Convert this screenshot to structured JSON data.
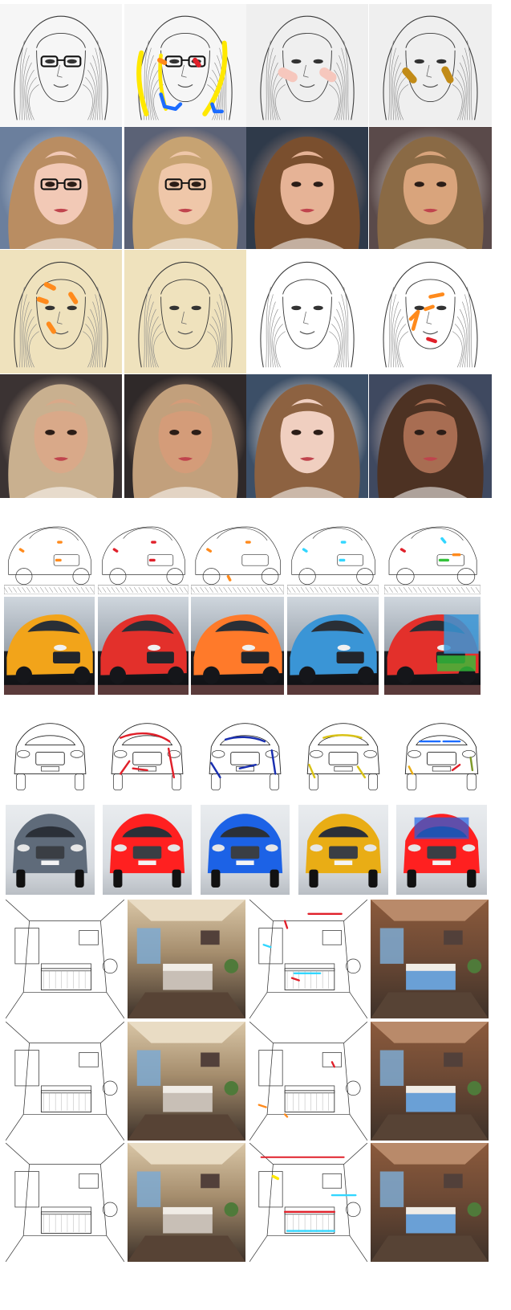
{
  "figure": {
    "sections": [
      {
        "name": "faces",
        "rows": 4
      },
      {
        "name": "cars-sedan",
        "rows": 2
      },
      {
        "name": "cars-benz",
        "rows": 2
      },
      {
        "name": "interiors",
        "rows": 3
      }
    ],
    "palette": {
      "sketch_ink": "#3a3a3a",
      "paper": "#f4f4f4",
      "sepia_paper": "#efe2bd",
      "stroke_yellow": "#ffe800",
      "stroke_blue": "#1c6cff",
      "stroke_orange": "#ff8a1c",
      "stroke_red": "#e0202a",
      "stroke_cyan": "#32d6ff",
      "stroke_green": "#33c23a",
      "car_yellow": "#f2a41a",
      "car_red": "#e3302b",
      "car_orange": "#ff7a2a",
      "car_blue": "#3a95d6",
      "car_gray": "#5f6b7a",
      "benz_red": "#ff2020",
      "benz_blue": "#1c62e6",
      "benz_yellow": "#e9ad15"
    }
  }
}
